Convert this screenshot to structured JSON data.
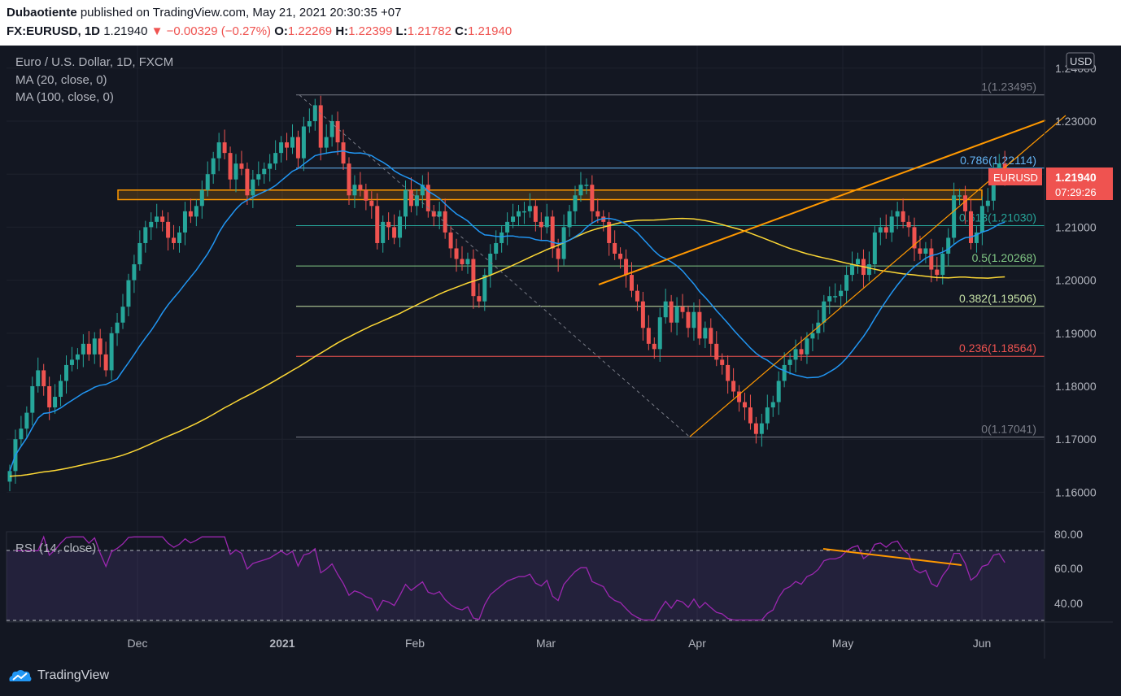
{
  "header": {
    "author": "Dubaotiente",
    "published": "published on TradingView.com, May 21, 2021 20:30:35 +07",
    "symbol": "FX:EURUSD, 1D",
    "last": "1.21940",
    "change": "−0.00329 (−0.27%)",
    "o_label": "O:",
    "o": "1.22269",
    "h_label": "H:",
    "h": "1.22399",
    "l_label": "L:",
    "l": "1.21782",
    "c_label": "C:",
    "c": "1.21940"
  },
  "legend": {
    "title": "Euro / U.S. Dollar, 1D, FXCM",
    "ma20": "MA (20, close, 0)",
    "ma100": "MA (100, close, 0)",
    "rsi": "RSI (14, close)"
  },
  "currency_label": "USD",
  "price_tag": {
    "symbol": "EURUSD",
    "price": "1.21940",
    "countdown": "07:29:26"
  },
  "footer": {
    "logo_text": "TradingView"
  },
  "colors": {
    "bg": "#131722",
    "up": "#26a69a",
    "down": "#ef5350",
    "ma20": "#2196f3",
    "ma100": "#fdd835",
    "trend": "#ff9800",
    "rsi": "#9c27b0"
  },
  "chart_data": {
    "type": "candlestick",
    "title": "Euro / U.S. Dollar, 1D, FXCM",
    "ylim": [
      1.155,
      1.245
    ],
    "y_ticks": [
      "1.16000",
      "1.17000",
      "1.18000",
      "1.19000",
      "1.20000",
      "1.21000",
      "1.22000",
      "1.23000",
      "1.24000"
    ],
    "x_ticks": [
      "Dec",
      "2021",
      "Feb",
      "Mar",
      "Apr",
      "May",
      "Jun"
    ],
    "fib_levels": [
      {
        "label": "1(1.23495)",
        "value": 1.23495,
        "color": "#787b86"
      },
      {
        "label": "0.786(1.22114)",
        "value": 1.22114,
        "color": "#64b5f6"
      },
      {
        "label": "0.618(1.21030)",
        "value": 1.2103,
        "color": "#26a69a"
      },
      {
        "label": "0.5(1.20268)",
        "value": 1.20268,
        "color": "#81c784"
      },
      {
        "label": "0.382(1.19506)",
        "value": 1.19506,
        "color": "#c5e1a5"
      },
      {
        "label": "0.236(1.18564)",
        "value": 1.18564,
        "color": "#ef5350"
      },
      {
        "label": "0(1.17041)",
        "value": 1.17041,
        "color": "#787b86"
      }
    ],
    "support_zone": [
      1.2152,
      1.217
    ],
    "closes": [
      1.164,
      1.17,
      1.172,
      1.175,
      1.18,
      1.183,
      1.18,
      1.176,
      1.178,
      1.181,
      1.184,
      1.185,
      1.186,
      1.188,
      1.186,
      1.189,
      1.186,
      1.183,
      1.19,
      1.192,
      1.195,
      1.2,
      1.203,
      1.207,
      1.21,
      1.211,
      1.212,
      1.211,
      1.208,
      1.207,
      1.209,
      1.213,
      1.212,
      1.214,
      1.217,
      1.22,
      1.223,
      1.226,
      1.224,
      1.219,
      1.222,
      1.221,
      1.216,
      1.219,
      1.22,
      1.221,
      1.222,
      1.224,
      1.226,
      1.225,
      1.227,
      1.223,
      1.229,
      1.23,
      1.233,
      1.225,
      1.227,
      1.23,
      1.226,
      1.222,
      1.216,
      1.218,
      1.217,
      1.215,
      1.214,
      1.207,
      1.211,
      1.21,
      1.208,
      1.212,
      1.217,
      1.214,
      1.216,
      1.218,
      1.213,
      1.212,
      1.213,
      1.209,
      1.206,
      1.204,
      1.203,
      1.204,
      1.197,
      1.196,
      1.201,
      1.205,
      1.207,
      1.209,
      1.211,
      1.212,
      1.213,
      1.213,
      1.214,
      1.211,
      1.21,
      1.212,
      1.206,
      1.204,
      1.21,
      1.213,
      1.216,
      1.218,
      1.218,
      1.213,
      1.212,
      1.211,
      1.207,
      1.205,
      1.204,
      1.201,
      1.198,
      1.196,
      1.191,
      1.188,
      1.187,
      1.193,
      1.196,
      1.192,
      1.195,
      1.194,
      1.191,
      1.194,
      1.189,
      1.191,
      1.188,
      1.185,
      1.184,
      1.181,
      1.179,
      1.177,
      1.176,
      1.173,
      1.171,
      1.173,
      1.176,
      1.177,
      1.181,
      1.184,
      1.185,
      1.187,
      1.186,
      1.189,
      1.19,
      1.192,
      1.196,
      1.197,
      1.197,
      1.198,
      1.201,
      1.203,
      1.204,
      1.201,
      1.203,
      1.209,
      1.21,
      1.209,
      1.212,
      1.213,
      1.211,
      1.21,
      1.206,
      1.205,
      1.206,
      1.202,
      1.201,
      1.205,
      1.208,
      1.216,
      1.216,
      1.213,
      1.207,
      1.209,
      1.214,
      1.215,
      1.221,
      1.222,
      1.219
    ]
  }
}
